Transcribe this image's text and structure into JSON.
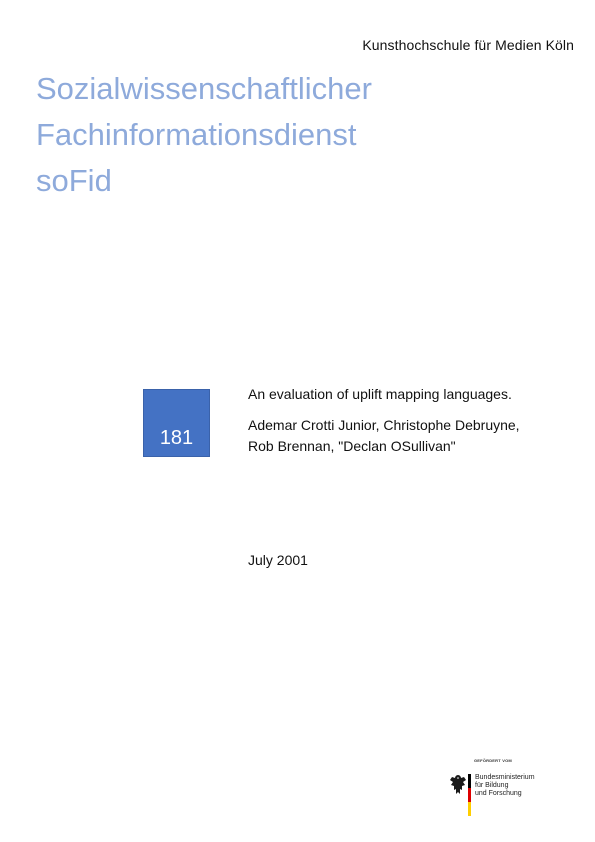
{
  "header": {
    "institution": "Kunsthochschule für Medien Köln"
  },
  "title": {
    "line1": "Sozialwissenschaftlicher",
    "line2": "Fachinformationsdienst",
    "line3": "soFid"
  },
  "issue": {
    "number": "181"
  },
  "document": {
    "title": "An evaluation of uplift mapping languages.",
    "authors_line1": "Ademar Crotti Junior, Christophe Debruyne,",
    "authors_line2": "Rob Brennan, \"Declan OSullivan\"",
    "date": "July 2001"
  },
  "funder": {
    "caption": "GEFÖRDERT VOM",
    "name_line1": "Bundesministerium",
    "name_line2": "für Bildung",
    "name_line3": "und Forschung",
    "flag_colors": [
      "#000000",
      "#dd0000",
      "#ffce00"
    ]
  }
}
